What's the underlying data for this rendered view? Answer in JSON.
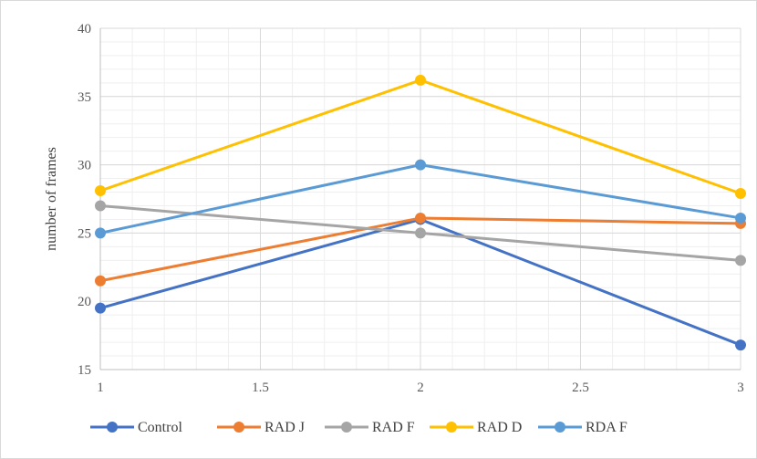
{
  "chart_data": {
    "type": "line",
    "title": "",
    "xlabel": "",
    "ylabel": "number of frames",
    "xlim": [
      1,
      3
    ],
    "ylim": [
      15,
      40
    ],
    "x_ticks": [
      1,
      1.5,
      2,
      2.5,
      3
    ],
    "y_ticks": [
      15,
      20,
      25,
      30,
      35,
      40
    ],
    "grid": "major and minor",
    "legend_position": "bottom",
    "x": [
      1,
      2,
      3
    ],
    "series": [
      {
        "name": "Control",
        "color": "#4472C4",
        "values": [
          19.5,
          26.0,
          16.8
        ]
      },
      {
        "name": "RAD J",
        "color": "#ED7D31",
        "values": [
          21.5,
          26.1,
          25.7
        ]
      },
      {
        "name": "RAD F",
        "color": "#A5A5A5",
        "values": [
          27.0,
          25.0,
          23.0
        ]
      },
      {
        "name": "RAD D",
        "color": "#FFC000",
        "values": [
          28.1,
          36.2,
          27.9
        ]
      },
      {
        "name": "RDA F",
        "color": "#5B9BD5",
        "values": [
          25.0,
          30.0,
          26.1
        ]
      }
    ]
  }
}
